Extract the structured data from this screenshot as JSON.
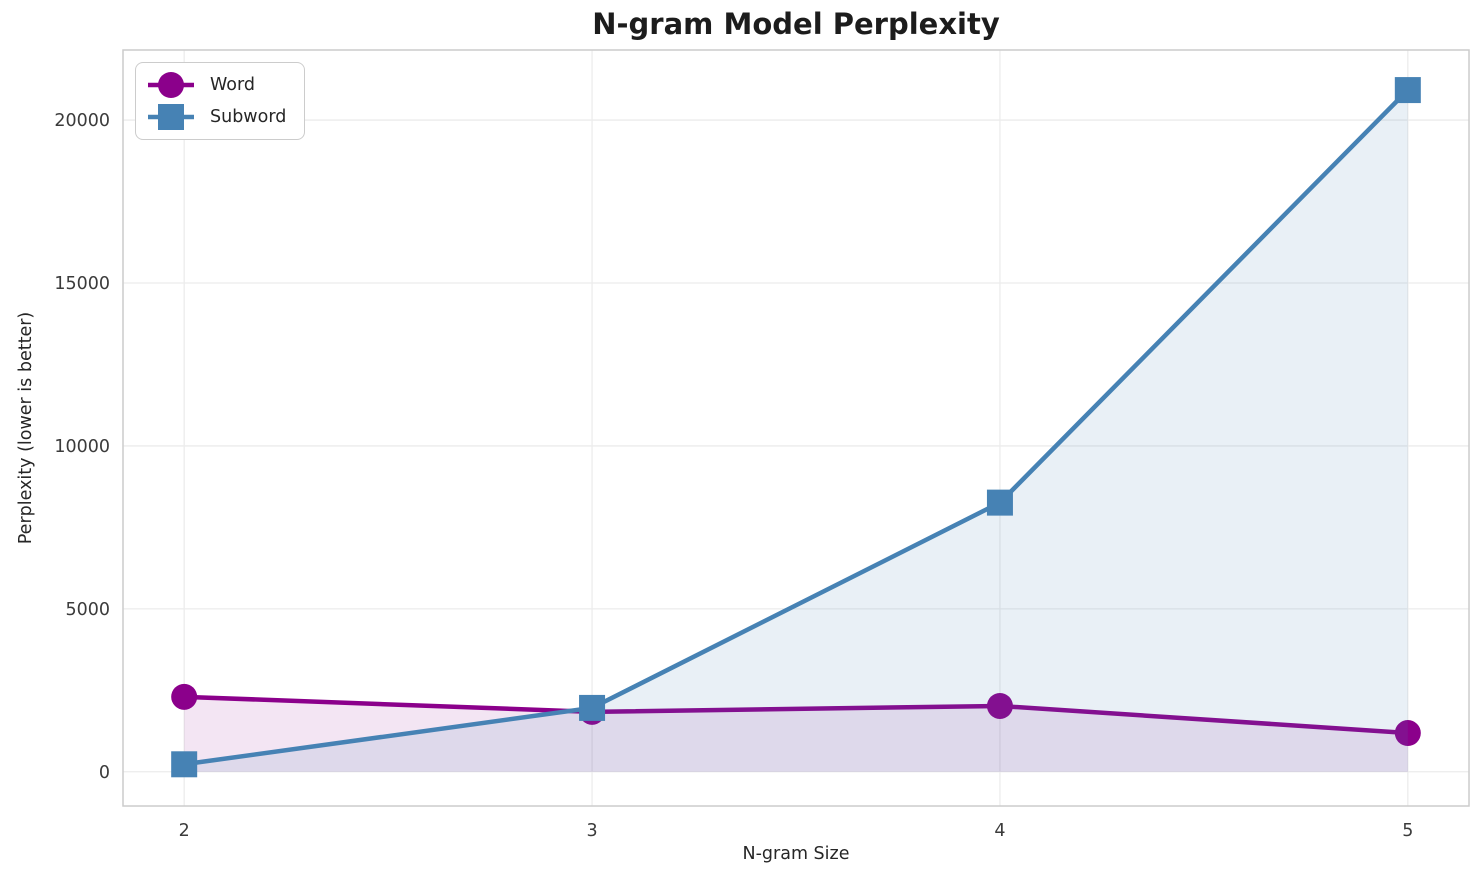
{
  "chart_data": {
    "type": "line",
    "title": "N-gram Model Perplexity",
    "xlabel": "N-gram Size",
    "ylabel": "Perplexity (lower is better)",
    "x": [
      2,
      3,
      4,
      5
    ],
    "series": [
      {
        "name": "Word",
        "values": [
          2300,
          1840,
          2020,
          1190
        ],
        "color": "#8B008B",
        "marker": "circle",
        "fill_to_zero": true,
        "fill_opacity": 0.1
      },
      {
        "name": "Subword",
        "values": [
          230,
          1960,
          8260,
          20920
        ],
        "color": "#4682B4",
        "marker": "square",
        "fill_to_zero": true,
        "fill_opacity": 0.12
      }
    ],
    "xticks": [
      2,
      3,
      4,
      5
    ],
    "xtick_labels": [
      "2",
      "3",
      "4",
      "5"
    ],
    "yticks": [
      0,
      5000,
      10000,
      15000,
      20000
    ],
    "ytick_labels": [
      "0",
      "5000",
      "10000",
      "15000",
      "20000"
    ],
    "xlim": [
      1.85,
      5.15
    ],
    "ylim": [
      -1050,
      22150
    ],
    "grid": true,
    "legend_position": "upper left"
  },
  "style": {
    "background": "#ffffff",
    "grid_color": "#ececec",
    "frame_color": "#cccccc",
    "tick_text_color": "#3b3b3b",
    "label_text_color": "#262626",
    "title_color": "#1c1c1c"
  }
}
